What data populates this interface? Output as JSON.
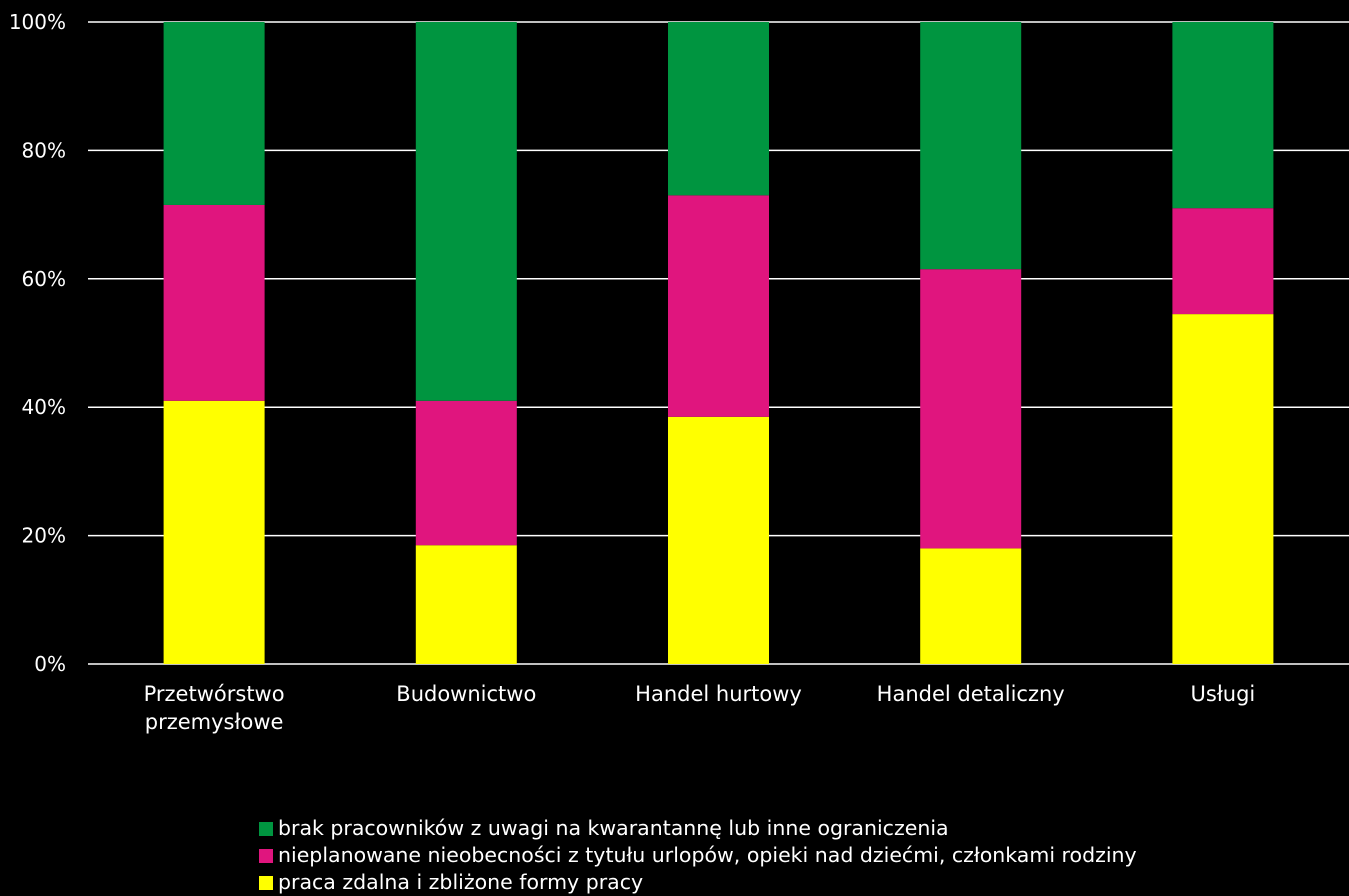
{
  "chart_data": {
    "type": "bar",
    "stacked": true,
    "normalized": true,
    "categories": [
      [
        "Przetwórstwo",
        "przemysłowe"
      ],
      [
        "Budownictwo"
      ],
      [
        "Handel hurtowy"
      ],
      [
        "Handel detaliczny"
      ],
      [
        "Usługi"
      ]
    ],
    "series": [
      {
        "name": "praca zdalna i zbliżone formy pracy",
        "color": "#ffff00",
        "values": [
          41,
          18.5,
          38.5,
          18,
          54.5
        ]
      },
      {
        "name": "nieplanowane nieobecności z tytułu urlopów, opieki nad dziećmi, członkami rodziny",
        "color": "#e0157e",
        "values": [
          30.5,
          22.5,
          34.5,
          43.5,
          16.5
        ]
      },
      {
        "name": "brak pracowników z uwagi na kwarantannę lub inne ograniczenia",
        "color": "#009540",
        "values": [
          28.5,
          59,
          27,
          38.5,
          29
        ]
      }
    ],
    "yticks": [
      "0%",
      "20%",
      "40%",
      "60%",
      "80%",
      "100%"
    ],
    "ylim": [
      0,
      100
    ],
    "grid": true,
    "legend_position": "bottom",
    "legend_order": [
      2,
      1,
      0
    ],
    "colors": {
      "background": "#000000",
      "text": "#ffffff",
      "grid": "#ffffff"
    }
  }
}
